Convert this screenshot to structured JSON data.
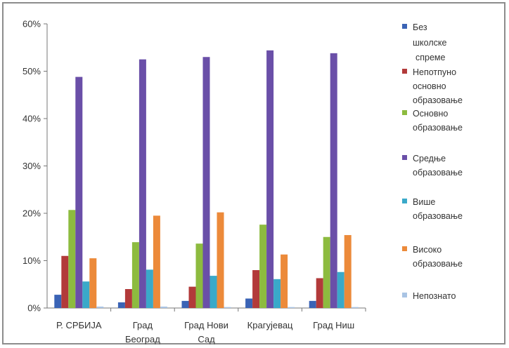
{
  "chart_data": {
    "type": "bar",
    "categories": [
      "Р. СРБИЈА",
      "Град Београд",
      "Град Нови Сад",
      "Крагујевац",
      "Град Ниш"
    ],
    "category_lines": [
      [
        "Р. СРБИЈА"
      ],
      [
        "Град",
        "Београд"
      ],
      [
        "Град Нови",
        "Сад"
      ],
      [
        "Крагујевац"
      ],
      [
        "Град Ниш"
      ]
    ],
    "series": [
      {
        "name": "Без школске спреме",
        "name_lines": [
          "Без",
          "школске",
          "спреме"
        ],
        "color": "#3a63b5",
        "values": [
          2.8,
          1.2,
          1.5,
          2.0,
          1.5
        ]
      },
      {
        "name": "Непотпуно основно образовање",
        "name_lines": [
          "Непотпуно",
          "основно",
          "образовање"
        ],
        "color": "#b23a3a",
        "values": [
          11.0,
          4.0,
          4.5,
          8.0,
          6.3
        ]
      },
      {
        "name": "Основно образовање",
        "name_lines": [
          "Основно",
          "образовање"
        ],
        "color": "#8dbb3f",
        "values": [
          20.7,
          13.9,
          13.6,
          17.6,
          15.0
        ]
      },
      {
        "name": "Средње образовање",
        "name_lines": [
          "Средње",
          "образовање"
        ],
        "color": "#6a4fa8",
        "values": [
          48.8,
          52.5,
          53.0,
          54.4,
          53.8
        ]
      },
      {
        "name": "Више образовање",
        "name_lines": [
          "Више",
          "образовање"
        ],
        "color": "#3aa9c9",
        "values": [
          5.6,
          8.1,
          6.8,
          6.1,
          7.6
        ]
      },
      {
        "name": "Високо образовање",
        "name_lines": [
          "Високо",
          "образовање"
        ],
        "color": "#ec8a3a",
        "values": [
          10.5,
          19.5,
          20.2,
          11.3,
          15.4
        ]
      },
      {
        "name": "Непознато",
        "name_lines": [
          "Непознато"
        ],
        "color": "#a9c4e4",
        "values": [
          0.3,
          0.3,
          0.2,
          0.2,
          0.2
        ]
      }
    ],
    "y_ticks": [
      "0%",
      "10%",
      "20%",
      "30%",
      "40%",
      "50%",
      "60%"
    ],
    "ylim": [
      0,
      60
    ],
    "grid": false,
    "legend_position": "right"
  }
}
